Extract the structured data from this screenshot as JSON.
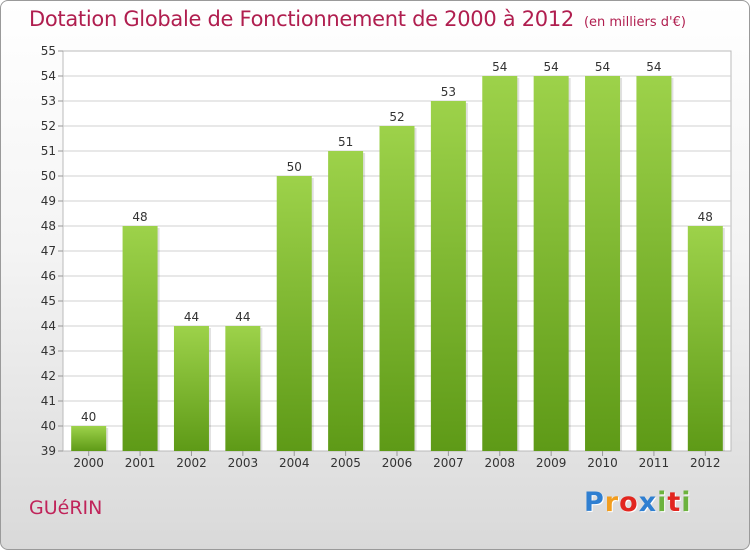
{
  "chart_data": {
    "type": "bar",
    "title": "Dotation Globale de Fonctionnement de 2000 à 2012",
    "unit": "(en milliers d'€)",
    "categories": [
      "2000",
      "2001",
      "2002",
      "2003",
      "2004",
      "2005",
      "2006",
      "2007",
      "2008",
      "2009",
      "2010",
      "2011",
      "2012"
    ],
    "values": [
      40,
      48,
      44,
      44,
      50,
      51,
      52,
      53,
      54,
      54,
      54,
      54,
      48
    ],
    "ylim": [
      39,
      55
    ],
    "yticks": [
      39,
      40,
      41,
      42,
      43,
      44,
      45,
      46,
      47,
      48,
      49,
      50,
      51,
      52,
      53,
      54,
      55
    ],
    "grid": true,
    "bar_color_top": "#9dd24a",
    "bar_color_bottom": "#5e9a17"
  },
  "footer": {
    "place_name": "GUéRIN",
    "brand": "Proxiti",
    "brand_colors": [
      "#2f7fd1",
      "#f29d1e",
      "#e2261f",
      "#2f7fd1",
      "#6cb33e",
      "#e2261f",
      "#6cb33e"
    ]
  },
  "colors": {
    "title": "#b01e4f",
    "place": "#c0245a",
    "grid": "#d0d0d0",
    "axis_text": "#333333"
  }
}
